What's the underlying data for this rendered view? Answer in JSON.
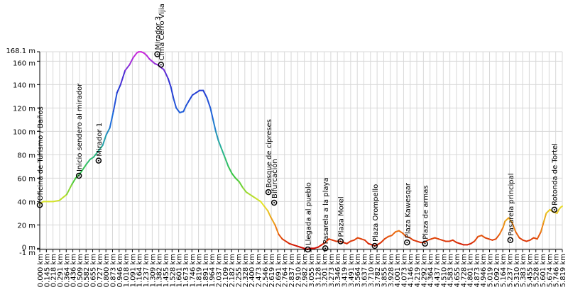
{
  "chart_data": {
    "type": "area",
    "title": "",
    "xlabel": "",
    "ylabel": "",
    "x_unit": "km",
    "y_unit": "m",
    "ylim": [
      -1,
      168.1
    ],
    "xlim": [
      0,
      5.819
    ],
    "y_ticks": [
      {
        "value": 168.1,
        "label": "168.1 m"
      },
      {
        "value": 160,
        "label": "160 m"
      },
      {
        "value": 140,
        "label": "140 m"
      },
      {
        "value": 120,
        "label": "120 m"
      },
      {
        "value": 100,
        "label": "100 m"
      },
      {
        "value": 80,
        "label": "80 m"
      },
      {
        "value": 60,
        "label": "60 m"
      },
      {
        "value": 40,
        "label": "40 m"
      },
      {
        "value": 20,
        "label": "20 m"
      },
      {
        "value": 0,
        "label": "0 m"
      },
      {
        "value": -1,
        "label": "-1 m"
      }
    ],
    "x_ticks": [
      "0.000 km",
      "0.145 km",
      "0.218 km",
      "0.291 km",
      "0.364 km",
      "0.436 km",
      "0.509 km",
      "0.582 km",
      "0.655 km",
      "0.727 km",
      "0.800 km",
      "0.873 km",
      "0.946 km",
      "1.018 km",
      "1.091 km",
      "1.164 km",
      "1.237 km",
      "1.309 km",
      "1.382 km",
      "1.455 km",
      "1.528 km",
      "1.601 km",
      "1.673 km",
      "1.746 km",
      "1.819 km",
      "1.891 km",
      "1.964 km",
      "2.037 km",
      "2.109 km",
      "2.182 km",
      "2.255 km",
      "2.328 km",
      "2.400 km",
      "2.473 km",
      "2.546 km",
      "2.619 km",
      "2.691 km",
      "2.764 km",
      "2.837 km",
      "2.910 km",
      "2.982 km",
      "3.055 km",
      "3.128 km",
      "3.201 km",
      "3.273 km",
      "3.346 km",
      "3.419 km",
      "3.491 km",
      "3.564 km",
      "3.637 km",
      "3.710 km",
      "3.782 km",
      "3.855 km",
      "3.928 km",
      "4.001 km",
      "4.073 km",
      "4.146 km",
      "4.219 km",
      "4.292 km",
      "4.364 km",
      "4.437 km",
      "4.510 km",
      "4.583 km",
      "4.655 km",
      "4.728 km",
      "4.801 km",
      "4.873 km",
      "4.946 km",
      "5.019 km",
      "5.092 km",
      "5.164 km",
      "5.237 km",
      "5.310 km",
      "5.383 km",
      "5.455 km",
      "5.528 km",
      "5.601 km",
      "5.674 km",
      "5.746 km",
      "5.819 km"
    ],
    "elevation_profile": {
      "x": [
        0.0,
        0.04,
        0.1,
        0.15,
        0.22,
        0.3,
        0.36,
        0.4,
        0.44,
        0.52,
        0.56,
        0.6,
        0.64,
        0.7,
        0.74,
        0.78,
        0.82,
        0.86,
        0.9,
        0.95,
        1.0,
        1.04,
        1.08,
        1.1,
        1.13,
        1.16,
        1.19,
        1.22,
        1.25,
        1.28,
        1.31,
        1.33,
        1.36,
        1.38,
        1.4,
        1.43,
        1.46,
        1.49,
        1.52,
        1.56,
        1.6,
        1.63,
        1.66,
        1.7,
        1.74,
        1.78,
        1.82,
        1.86,
        1.9,
        1.93,
        1.96,
        1.99,
        2.02,
        2.06,
        2.1,
        2.14,
        2.18,
        2.22,
        2.26,
        2.3,
        2.34,
        2.38,
        2.42,
        2.46,
        2.5,
        2.54,
        2.57,
        2.62,
        2.66,
        2.7,
        2.74,
        2.78,
        2.82,
        2.86,
        2.9,
        2.94,
        2.98,
        3.02,
        3.06,
        3.1,
        3.14,
        3.18,
        3.22,
        3.26,
        3.3,
        3.34,
        3.38,
        3.42,
        3.46,
        3.5,
        3.54,
        3.58,
        3.62,
        3.66,
        3.7,
        3.73,
        3.76,
        3.8,
        3.84,
        3.88,
        3.92,
        3.96,
        4.0,
        4.04,
        4.08,
        4.12,
        4.16,
        4.2,
        4.24,
        4.28,
        4.32,
        4.36,
        4.4,
        4.44,
        4.48,
        4.52,
        4.56,
        4.6,
        4.64,
        4.68,
        4.72,
        4.76,
        4.8,
        4.84,
        4.88,
        4.92,
        4.96,
        5.0,
        5.04,
        5.08,
        5.12,
        5.16,
        5.18,
        5.22,
        5.26,
        5.3,
        5.34,
        5.38,
        5.42,
        5.46,
        5.5,
        5.54,
        5.58,
        5.61,
        5.64,
        5.68,
        5.72,
        5.76,
        5.78,
        5.8,
        5.819
      ],
      "y": [
        38,
        40,
        40,
        40,
        41,
        46,
        55,
        60,
        63,
        72,
        76,
        78,
        82,
        88,
        97,
        103,
        117,
        133,
        140,
        152,
        157,
        163,
        167,
        168,
        168,
        167,
        165,
        162,
        160,
        158,
        157,
        156,
        154,
        153,
        150,
        145,
        138,
        128,
        120,
        116,
        117,
        122,
        126,
        131,
        133,
        135,
        135,
        129,
        120,
        110,
        100,
        92,
        86,
        78,
        70,
        64,
        60,
        57,
        52,
        48,
        46,
        44,
        42,
        40,
        36,
        32,
        27,
        20,
        12,
        8,
        6,
        4,
        3,
        2,
        1,
        0,
        -1,
        0,
        0,
        1,
        3,
        5,
        8,
        7,
        6,
        6,
        5,
        4,
        6,
        7,
        9,
        8,
        7,
        4,
        3,
        2,
        3,
        5,
        8,
        10,
        11,
        14,
        15,
        13,
        10,
        9,
        7,
        6,
        5,
        5,
        7,
        8,
        9,
        8,
        7,
        6,
        6,
        7,
        5,
        4,
        3,
        3,
        4,
        6,
        10,
        11,
        9,
        8,
        7,
        8,
        12,
        18,
        23,
        26,
        22,
        14,
        9,
        7,
        6,
        7,
        9,
        8,
        14,
        22,
        30,
        33,
        31,
        30,
        33,
        35,
        36
      ]
    },
    "waypoints": [
      {
        "x": 0.0,
        "y": 37,
        "label": "Oficina de Turismo / Baños"
      },
      {
        "x": 0.436,
        "y": 62,
        "label": "Inicio sendero al mirador"
      },
      {
        "x": 0.655,
        "y": 75,
        "label": "Mirador 1"
      },
      {
        "x": 1.309,
        "y": 166,
        "label": "Mirador 3"
      },
      {
        "x": 1.35,
        "y": 157,
        "label": "Cima Cerro Vijia"
      },
      {
        "x": 2.546,
        "y": 48,
        "label": "Bosque de cipreses"
      },
      {
        "x": 2.61,
        "y": 39,
        "label": "Bifurcación"
      },
      {
        "x": 2.985,
        "y": -1,
        "label": "Llegada al pueblo"
      },
      {
        "x": 3.18,
        "y": 0,
        "label": "Pasarela a la playa"
      },
      {
        "x": 3.35,
        "y": 6,
        "label": "Plaza Morel"
      },
      {
        "x": 3.73,
        "y": 2,
        "label": "Plaza Orompello"
      },
      {
        "x": 4.09,
        "y": 5,
        "label": "Plaza Kawesqar"
      },
      {
        "x": 4.29,
        "y": 4,
        "label": "Plaza de armas"
      },
      {
        "x": 5.24,
        "y": 7,
        "label": "Pasarela principal"
      },
      {
        "x": 5.73,
        "y": 33,
        "label": "Rotonda de Tortel"
      }
    ],
    "grid": true,
    "color_scale": "elevation gradient (low red → yellow → green → blue → magenta high)"
  }
}
